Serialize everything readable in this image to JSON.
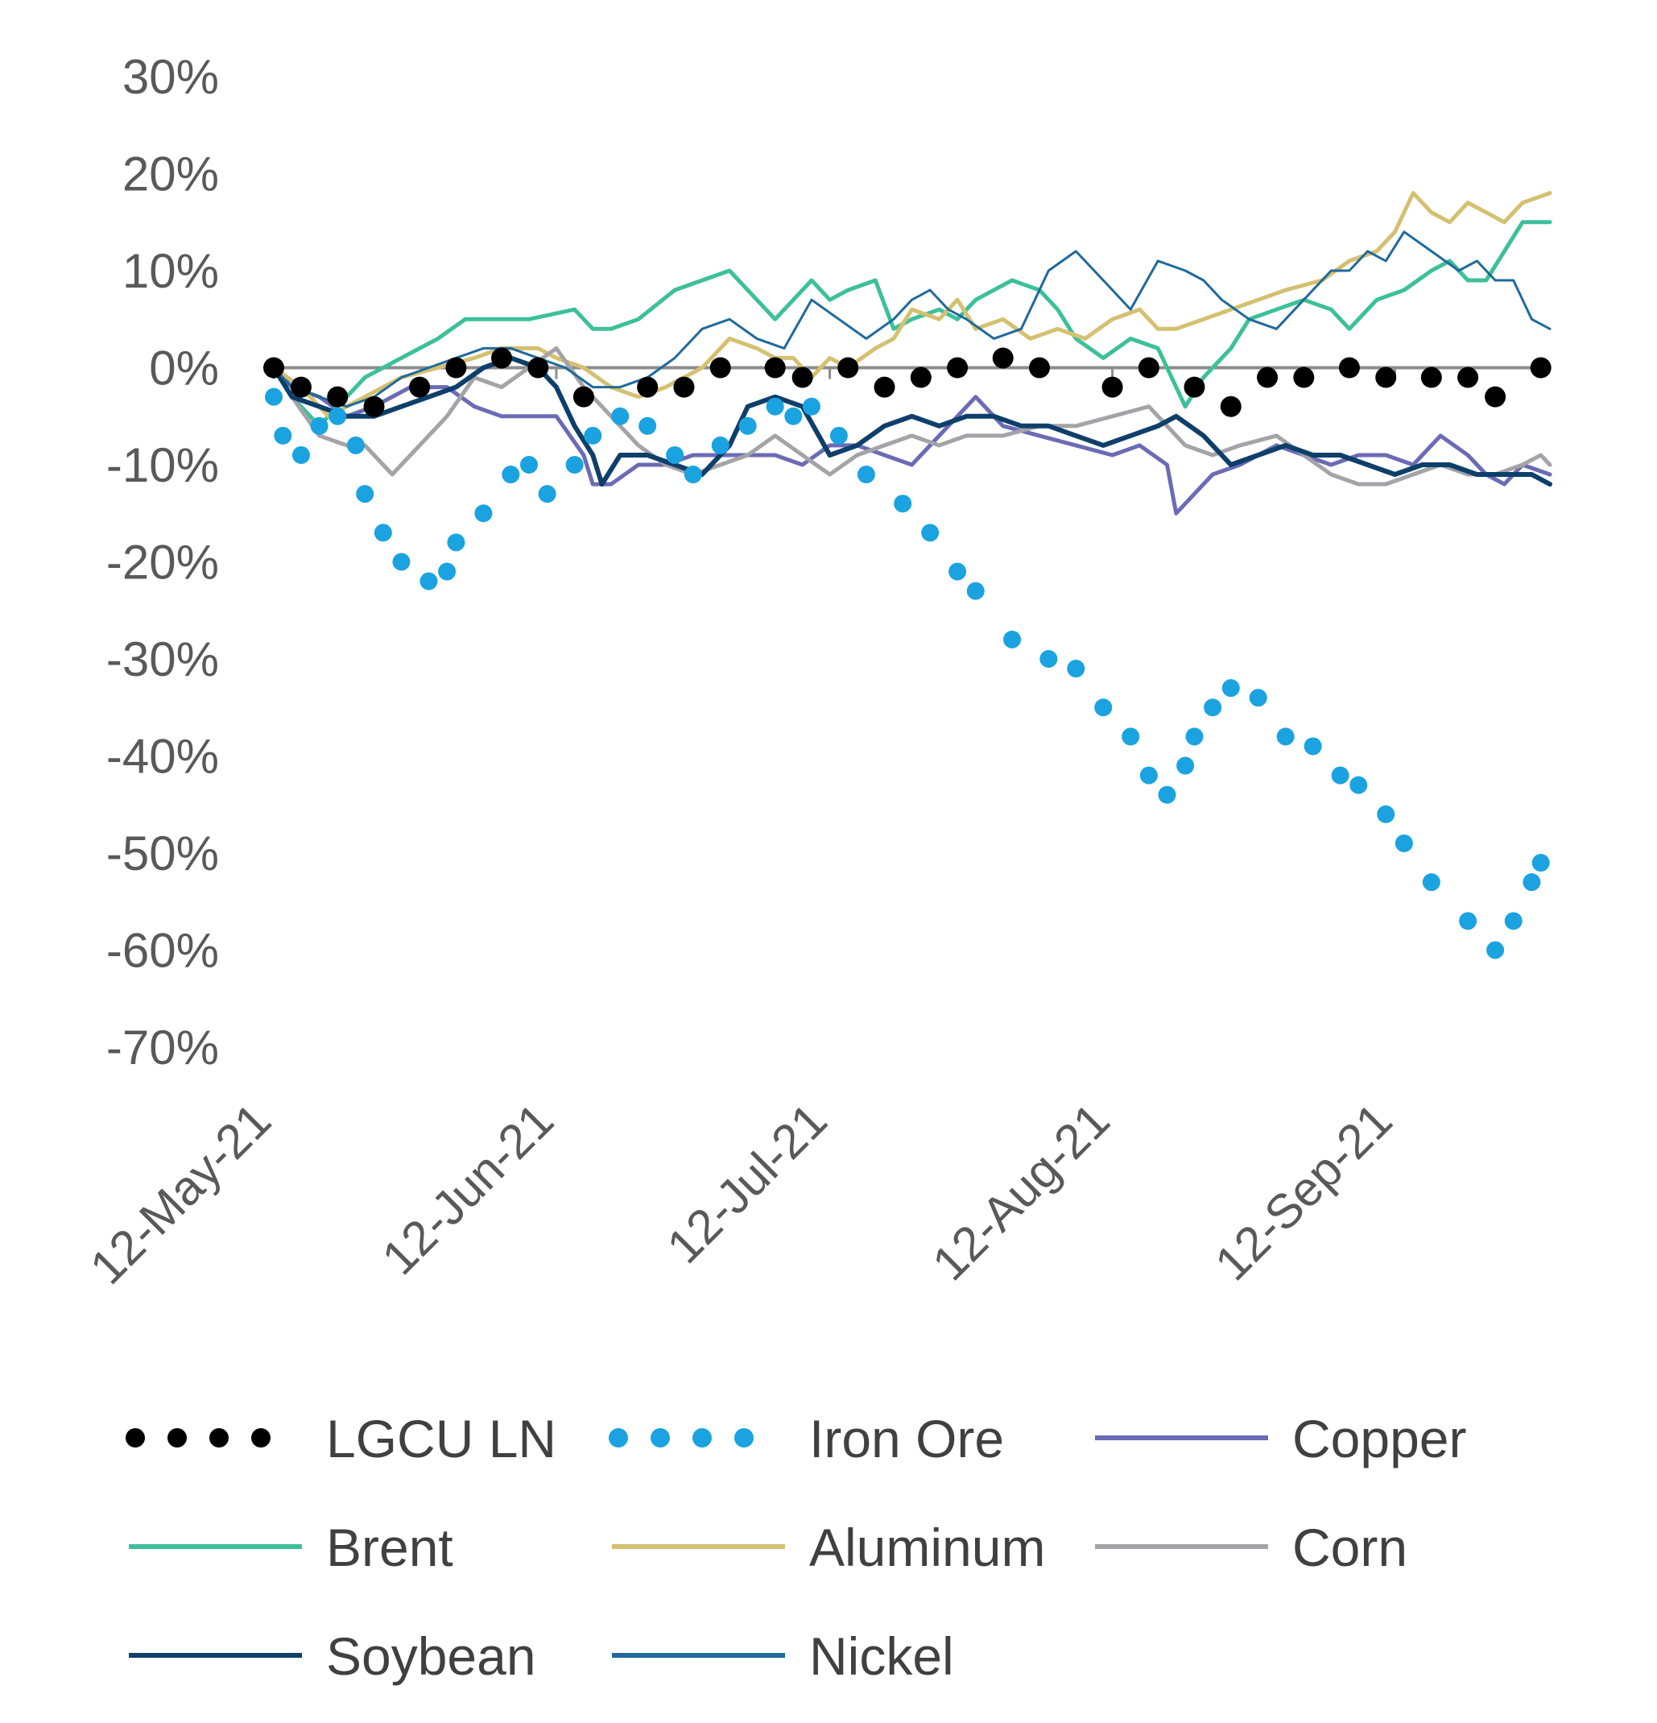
{
  "chart_data": {
    "type": "line",
    "title": "",
    "xlabel": "",
    "ylabel": "",
    "ylim": [
      -70,
      30
    ],
    "y_ticks": [
      "30%",
      "20%",
      "10%",
      "0%",
      "-10%",
      "-20%",
      "-30%",
      "-40%",
      "-50%",
      "-60%",
      "-70%"
    ],
    "y_tick_values": [
      30,
      20,
      10,
      0,
      -10,
      -20,
      -30,
      -40,
      -50,
      -60,
      -70
    ],
    "x_ticks": [
      "12-May-21",
      "12-Jun-21",
      "12-Jul-21",
      "12-Aug-21",
      "12-Sep-21"
    ],
    "x_tick_days": [
      0,
      31,
      61,
      92,
      123
    ],
    "x_range_days": [
      0,
      140
    ],
    "grid": false,
    "zero_line": true,
    "legend_position": "bottom",
    "series": [
      {
        "name": "LGCU LN",
        "color": "#000000",
        "style": "dots",
        "x": [
          0,
          3,
          7,
          11,
          16,
          20,
          25,
          29,
          34,
          41,
          45,
          49,
          55,
          58,
          63,
          67,
          71,
          75,
          80,
          84,
          92,
          96,
          101,
          105,
          109,
          113,
          118,
          122,
          127,
          131,
          134,
          139
        ],
        "y": [
          0,
          -2,
          -3,
          -4,
          -2,
          0,
          1,
          0,
          -3,
          -2,
          -2,
          0,
          0,
          -1,
          0,
          -2,
          -1,
          0,
          1,
          0,
          -2,
          0,
          -2,
          -4,
          -1,
          -1,
          0,
          -1,
          -1,
          -1,
          -3,
          0
        ]
      },
      {
        "name": "Iron Ore",
        "color": "#1aa3e0",
        "style": "dots",
        "x": [
          0,
          1,
          3,
          5,
          7,
          9,
          10,
          12,
          14,
          17,
          19,
          20,
          23,
          26,
          28,
          30,
          33,
          35,
          38,
          41,
          44,
          46,
          49,
          52,
          55,
          57,
          59,
          62,
          65,
          69,
          72,
          75,
          77,
          81,
          85,
          88,
          91,
          94,
          96,
          98,
          100,
          101,
          103,
          105,
          108,
          111,
          114,
          117,
          119,
          122,
          124,
          127,
          131,
          134,
          136,
          138,
          139
        ],
        "y": [
          -3,
          -7,
          -9,
          -6,
          -5,
          -8,
          -13,
          -17,
          -20,
          -22,
          -21,
          -18,
          -15,
          -11,
          -10,
          -13,
          -10,
          -7,
          -5,
          -6,
          -9,
          -11,
          -8,
          -6,
          -4,
          -5,
          -4,
          -7,
          -11,
          -14,
          -17,
          -21,
          -23,
          -28,
          -30,
          -31,
          -35,
          -38,
          -42,
          -44,
          -41,
          -38,
          -35,
          -33,
          -34,
          -38,
          -39,
          -42,
          -43,
          -46,
          -49,
          -53,
          -57,
          -60,
          -57,
          -53,
          -51
        ]
      },
      {
        "name": "Copper",
        "color": "#6b6bb5",
        "style": "solid",
        "width": 5,
        "x": [
          0,
          2,
          5,
          8,
          11,
          15,
          19,
          22,
          25,
          28,
          31,
          34,
          35,
          37,
          40,
          43,
          46,
          49,
          52,
          55,
          58,
          61,
          64,
          67,
          70,
          73,
          77,
          80,
          84,
          88,
          92,
          95,
          98,
          99,
          101,
          103,
          106,
          110,
          113,
          116,
          119,
          122,
          125,
          128,
          131,
          133,
          135,
          137,
          140
        ],
        "y": [
          0,
          -2,
          -3,
          -5,
          -4,
          -2,
          -2,
          -4,
          -5,
          -5,
          -5,
          -9,
          -12,
          -12,
          -10,
          -10,
          -9,
          -9,
          -9,
          -9,
          -10,
          -8,
          -8,
          -9,
          -10,
          -7,
          -3,
          -6,
          -7,
          -8,
          -9,
          -8,
          -10,
          -15,
          -13,
          -11,
          -10,
          -8,
          -9,
          -10,
          -9,
          -9,
          -10,
          -7,
          -9,
          -11,
          -12,
          -10,
          -11
        ]
      },
      {
        "name": "Brent",
        "color": "#3cc09a",
        "style": "solid",
        "width": 5,
        "x": [
          0,
          2,
          5,
          8,
          10,
          14,
          18,
          21,
          25,
          28,
          33,
          35,
          37,
          40,
          44,
          47,
          50,
          53,
          55,
          57,
          59,
          61,
          63,
          66,
          68,
          70,
          73,
          75,
          77,
          79,
          81,
          84,
          86,
          88,
          91,
          94,
          97,
          98,
          100,
          102,
          105,
          107,
          110,
          113,
          116,
          118,
          121,
          124,
          127,
          129,
          131,
          133,
          135,
          137,
          140
        ],
        "y": [
          0,
          -3,
          -6,
          -3,
          -1,
          1,
          3,
          5,
          5,
          5,
          6,
          4,
          4,
          5,
          8,
          9,
          10,
          7,
          5,
          7,
          9,
          7,
          8,
          9,
          4,
          5,
          6,
          5,
          7,
          8,
          9,
          8,
          6,
          3,
          1,
          3,
          2,
          0,
          -4,
          -1,
          2,
          5,
          6,
          7,
          6,
          4,
          7,
          8,
          10,
          11,
          9,
          9,
          12,
          15,
          15
        ]
      },
      {
        "name": "Aluminum",
        "color": "#d4c070",
        "style": "solid",
        "width": 5,
        "x": [
          0,
          3,
          6,
          10,
          14,
          18,
          22,
          25,
          29,
          31,
          34,
          37,
          40,
          43,
          47,
          50,
          53,
          55,
          57,
          59,
          61,
          63,
          66,
          68,
          70,
          73,
          75,
          77,
          80,
          83,
          86,
          89,
          92,
          95,
          97,
          99,
          102,
          105,
          108,
          111,
          115,
          118,
          121,
          123,
          125,
          127,
          129,
          131,
          133,
          135,
          137,
          140
        ],
        "y": [
          0,
          -2,
          -5,
          -3,
          -1,
          0,
          1,
          2,
          2,
          1,
          0,
          -2,
          -3,
          -2,
          0,
          3,
          2,
          1,
          1,
          -1,
          1,
          0,
          2,
          3,
          6,
          5,
          7,
          4,
          5,
          3,
          4,
          3,
          5,
          6,
          4,
          4,
          5,
          6,
          7,
          8,
          9,
          11,
          12,
          14,
          18,
          16,
          15,
          17,
          16,
          15,
          17,
          18
        ]
      },
      {
        "name": "Corn",
        "color": "#a3a3a8",
        "style": "solid",
        "width": 5,
        "x": [
          0,
          2,
          5,
          8,
          10,
          13,
          15,
          17,
          19,
          22,
          25,
          28,
          31,
          34,
          36,
          38,
          40,
          43,
          46,
          49,
          52,
          55,
          58,
          61,
          64,
          67,
          70,
          73,
          76,
          80,
          84,
          88,
          92,
          96,
          100,
          103,
          106,
          110,
          113,
          116,
          119,
          122,
          125,
          128,
          131,
          134,
          137,
          139,
          140
        ],
        "y": [
          0,
          -3,
          -7,
          -8,
          -8,
          -11,
          -9,
          -7,
          -5,
          -1,
          -2,
          0,
          2,
          -2,
          -4,
          -6,
          -8,
          -10,
          -11,
          -10,
          -9,
          -7,
          -9,
          -11,
          -9,
          -8,
          -7,
          -8,
          -7,
          -7,
          -6,
          -6,
          -5,
          -4,
          -8,
          -9,
          -8,
          -7,
          -9,
          -11,
          -12,
          -12,
          -11,
          -10,
          -11,
          -11,
          -10,
          -9,
          -10
        ]
      },
      {
        "name": "Soybean",
        "color": "#0e3f6b",
        "style": "solid",
        "width": 6,
        "x": [
          0,
          2,
          5,
          8,
          11,
          14,
          17,
          20,
          23,
          26,
          29,
          31,
          33,
          35,
          36,
          38,
          41,
          44,
          47,
          50,
          52,
          55,
          58,
          61,
          64,
          67,
          70,
          73,
          76,
          79,
          82,
          85,
          88,
          91,
          94,
          97,
          99,
          102,
          105,
          108,
          111,
          114,
          117,
          120,
          123,
          126,
          129,
          132,
          135,
          138,
          140
        ],
        "y": [
          0,
          -3,
          -4,
          -5,
          -5,
          -4,
          -3,
          -2,
          0,
          1,
          0,
          -2,
          -6,
          -9,
          -12,
          -9,
          -9,
          -10,
          -11,
          -8,
          -4,
          -3,
          -4,
          -9,
          -8,
          -6,
          -5,
          -6,
          -5,
          -5,
          -6,
          -6,
          -7,
          -8,
          -7,
          -6,
          -5,
          -7,
          -10,
          -9,
          -8,
          -9,
          -9,
          -10,
          -11,
          -10,
          -10,
          -11,
          -11,
          -11,
          -12
        ]
      },
      {
        "name": "Nickel",
        "color": "#1f6a9c",
        "style": "solid",
        "width": 3,
        "x": [
          0,
          2,
          5,
          8,
          11,
          14,
          17,
          20,
          23,
          26,
          29,
          32,
          35,
          38,
          41,
          44,
          47,
          50,
          53,
          56,
          59,
          62,
          65,
          68,
          70,
          72,
          74,
          76,
          79,
          82,
          85,
          88,
          91,
          94,
          97,
          100,
          102,
          104,
          107,
          110,
          112,
          114,
          116,
          118,
          120,
          122,
          124,
          127,
          130,
          132,
          134,
          136,
          138,
          140
        ],
        "y": [
          0,
          -2,
          -3,
          -4,
          -3,
          -1,
          0,
          1,
          2,
          2,
          1,
          0,
          -2,
          -2,
          -1,
          1,
          4,
          5,
          3,
          2,
          7,
          5,
          3,
          5,
          7,
          8,
          6,
          5,
          3,
          4,
          10,
          12,
          9,
          6,
          11,
          10,
          9,
          7,
          5,
          4,
          6,
          8,
          10,
          10,
          12,
          11,
          14,
          12,
          10,
          11,
          9,
          9,
          5,
          4
        ]
      }
    ]
  },
  "legend": [
    {
      "label": "LGCU LN",
      "style": "dots",
      "color": "#000000"
    },
    {
      "label": "Iron Ore",
      "style": "dots",
      "color": "#1aa3e0"
    },
    {
      "label": "Copper",
      "style": "solid",
      "color": "#6b6bb5"
    },
    {
      "label": "Brent",
      "style": "solid",
      "color": "#3cc09a"
    },
    {
      "label": "Aluminum",
      "style": "solid",
      "color": "#d4c070"
    },
    {
      "label": "Corn",
      "style": "solid",
      "color": "#a3a3a8"
    },
    {
      "label": "Soybean",
      "style": "solid",
      "color": "#0e3f6b"
    },
    {
      "label": "Nickel",
      "style": "solid",
      "color": "#1f6a9c"
    }
  ]
}
